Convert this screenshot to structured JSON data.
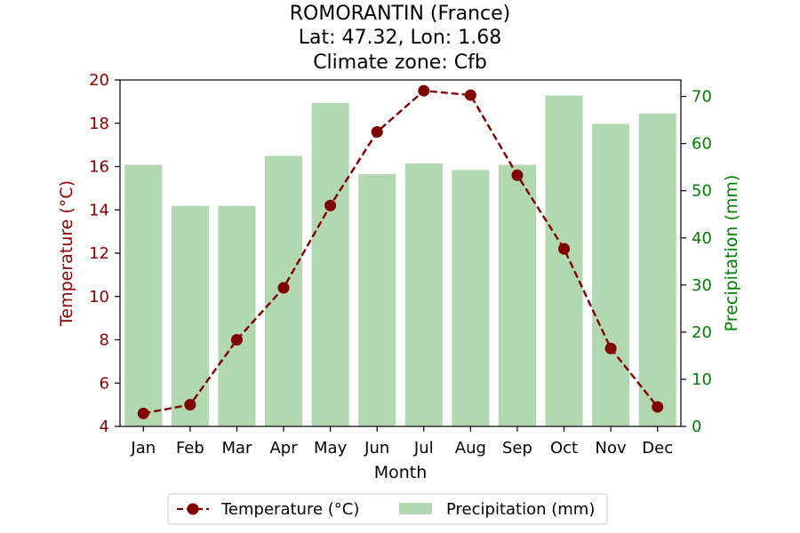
{
  "chart_data": {
    "type": "bar+line",
    "title_lines": [
      "ROMORANTIN (France)",
      "Lat: 47.32, Lon: 1.68",
      "Climate zone: Cfb"
    ],
    "xlabel": "Month",
    "ylabel_left": "Temperature (°C)",
    "ylabel_right": "Precipitation (mm)",
    "categories": [
      "Jan",
      "Feb",
      "Mar",
      "Apr",
      "May",
      "Jun",
      "Jul",
      "Aug",
      "Sep",
      "Oct",
      "Nov",
      "Dec"
    ],
    "series": [
      {
        "name": "Temperature (°C)",
        "type": "line",
        "axis": "left",
        "values": [
          4.6,
          5.0,
          8.0,
          10.4,
          14.2,
          17.6,
          19.5,
          19.3,
          15.6,
          12.2,
          7.6,
          4.9
        ]
      },
      {
        "name": "Precipitation (mm)",
        "type": "bar",
        "axis": "right",
        "values": [
          55.5,
          46.8,
          46.8,
          57.4,
          68.6,
          53.5,
          55.8,
          54.4,
          55.5,
          70.2,
          64.2,
          66.4
        ]
      }
    ],
    "ylim_left": [
      4,
      20
    ],
    "yticks_left": [
      4,
      6,
      8,
      10,
      12,
      14,
      16,
      18,
      20
    ],
    "ylim_right": [
      0,
      73.5
    ],
    "yticks_right": [
      0,
      10,
      20,
      30,
      40,
      50,
      60,
      70
    ],
    "colors": {
      "temperature": "#800000",
      "precipitation": "#b2d8b2",
      "left_axis": "#8b0000",
      "right_axis": "#008000"
    },
    "grid": false,
    "legend_placement": "bottom-center"
  }
}
